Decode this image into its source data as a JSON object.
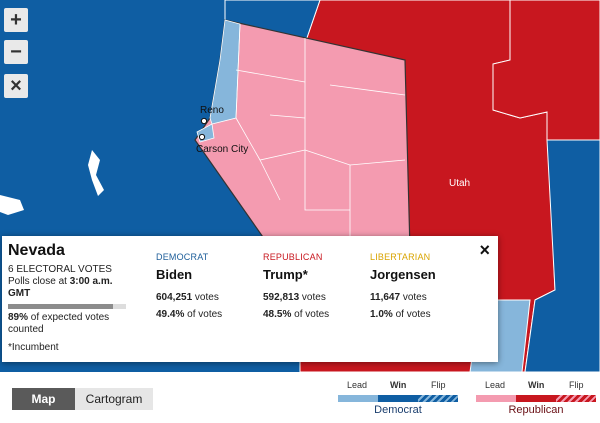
{
  "map": {
    "colors": {
      "ocean": "#0f5ea3",
      "dem_win": "#0f5ea3",
      "dem_lead": "#86b6db",
      "rep_win": "#c8171f",
      "rep_lead": "#f49bb0",
      "land_light": "#b9d3ea"
    },
    "cities": [
      {
        "name": "Reno"
      },
      {
        "name": "Carson City"
      }
    ],
    "state_labels": {
      "utah": "Utah"
    }
  },
  "zoom": {
    "in_icon": "plus-icon",
    "in_label": "+",
    "out_icon": "minus-icon",
    "out_label": "−",
    "reset_icon": "close-icon",
    "reset_label": "×"
  },
  "popup": {
    "state_name": "Nevada",
    "electoral_votes": "6 ELECTORAL VOTES",
    "polls_prefix": "Polls close at ",
    "polls_time": "3:00 a.m. GMT",
    "expected_counted_pct": 89,
    "counted_bold": "89%",
    "counted_rest": " of expected votes counted",
    "incumbent_note": "*Incumbent",
    "close_label": "×",
    "candidates": [
      {
        "party": "DEMOCRAT",
        "party_color": "#1c5d99",
        "name": "Biden",
        "votes_num": "604,251",
        "votes_word": " votes",
        "pct_num": "49.4%",
        "pct_word": " of votes"
      },
      {
        "party": "REPUBLICAN",
        "party_color": "#c8171f",
        "name": "Trump*",
        "votes_num": "592,813",
        "votes_word": " votes",
        "pct_num": "48.5%",
        "pct_word": " of votes"
      },
      {
        "party": "LIBERTARIAN",
        "party_color": "#d9a400",
        "name": "Jorgensen",
        "votes_num": "11,647",
        "votes_word": " votes",
        "pct_num": "1.0%",
        "pct_word": " of votes"
      }
    ]
  },
  "view_toggle": {
    "map_label": "Map",
    "cartogram_label": "Cartogram"
  },
  "legend": {
    "lead": "Lead",
    "win": "Win",
    "flip": "Flip",
    "democrat": "Democrat",
    "republican": "Republican"
  }
}
